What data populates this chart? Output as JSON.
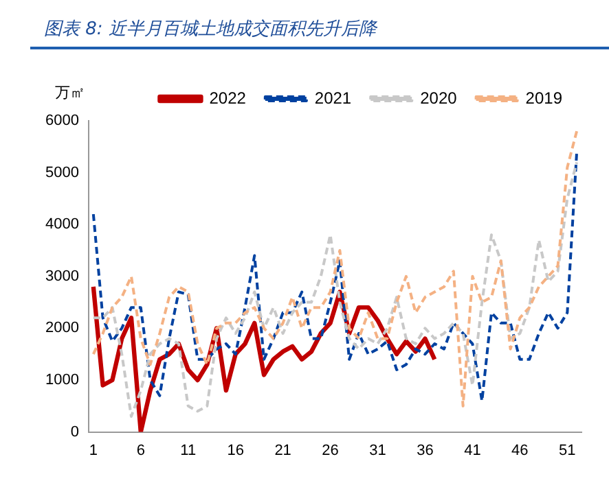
{
  "chart_data": {
    "type": "line",
    "title": "图表 8:  近半月百城土地成交面积先升后降",
    "ylabel": "万㎡",
    "x": [
      1,
      2,
      3,
      4,
      5,
      6,
      7,
      8,
      9,
      10,
      11,
      12,
      13,
      14,
      15,
      16,
      17,
      18,
      19,
      20,
      21,
      22,
      23,
      24,
      25,
      26,
      27,
      28,
      29,
      30,
      31,
      32,
      33,
      34,
      35,
      36,
      37,
      38,
      39,
      40,
      41,
      42,
      43,
      44,
      45,
      46,
      47,
      48,
      49,
      50,
      51,
      52
    ],
    "xlim": [
      0.5,
      52.5
    ],
    "xticks": [
      1,
      6,
      11,
      16,
      21,
      26,
      31,
      36,
      41,
      46,
      51
    ],
    "ylim": [
      0,
      6000
    ],
    "yticks": [
      0,
      1000,
      2000,
      3000,
      4000,
      5000,
      6000
    ],
    "grid": false,
    "legend": "top",
    "marker": "none",
    "series": [
      {
        "name": "2022",
        "color": "#c00000",
        "line_style": "solid",
        "x": [
          1,
          2,
          3,
          4,
          5,
          6,
          7,
          8,
          9,
          10,
          11,
          12,
          13,
          14,
          15,
          16,
          17,
          18,
          19,
          20,
          21,
          22,
          23,
          24,
          25,
          26,
          27,
          28,
          29,
          30,
          31,
          32,
          33,
          34,
          35,
          36,
          37
        ],
        "values": [
          2800,
          900,
          1000,
          1800,
          2200,
          0,
          800,
          1400,
          1500,
          1700,
          1200,
          1000,
          1300,
          2000,
          800,
          1500,
          1700,
          2100,
          1100,
          1400,
          1550,
          1650,
          1400,
          1550,
          1900,
          2100,
          2700,
          1900,
          2400,
          2400,
          2150,
          1800,
          1500,
          1750,
          1550,
          1800,
          1400
        ]
      },
      {
        "name": "2021",
        "color": "#0041a0",
        "line_style": "dashed",
        "values": [
          4200,
          2200,
          1750,
          2000,
          2400,
          2400,
          1000,
          700,
          1800,
          2700,
          2650,
          1400,
          1400,
          1600,
          1700,
          1500,
          2400,
          3400,
          1400,
          1800,
          2300,
          2300,
          2700,
          1800,
          1800,
          2500,
          3300,
          1400,
          1900,
          1500,
          1600,
          1750,
          1200,
          1300,
          1600,
          1500,
          1700,
          1600,
          2100,
          1900,
          1700,
          600,
          2300,
          2100,
          2100,
          1400,
          1400,
          1900,
          2300,
          2000,
          2300,
          5400
        ]
      },
      {
        "name": "2020",
        "color": "#c8c8c8",
        "line_style": "dashed",
        "values": [
          2200,
          2200,
          2400,
          1500,
          300,
          800,
          1500,
          1700,
          1800,
          1700,
          500,
          400,
          500,
          1800,
          2200,
          1900,
          2200,
          2700,
          2000,
          2400,
          1900,
          2300,
          2500,
          2500,
          3000,
          3800,
          2500,
          1800,
          1600,
          1800,
          1700,
          2000,
          2600,
          1800,
          1700,
          2000,
          1800,
          1900,
          2100,
          1900,
          900,
          2500,
          3800,
          3300,
          1800,
          1900,
          2400,
          3700,
          2900,
          3100,
          4500,
          5200
        ]
      },
      {
        "name": "2019",
        "color": "#f4b183",
        "line_style": "dashed",
        "values": [
          1500,
          1900,
          2400,
          2600,
          3000,
          1800,
          1300,
          1900,
          2600,
          2800,
          2700,
          1700,
          1300,
          2000,
          2100,
          2100,
          2300,
          2400,
          2000,
          1800,
          2100,
          2600,
          2000,
          2400,
          2400,
          2700,
          3500,
          2000,
          1800,
          2300,
          1800,
          1800,
          2500,
          3000,
          2300,
          2600,
          2700,
          2800,
          3100,
          500,
          3000,
          2500,
          2600,
          3300,
          1600,
          2200,
          2400,
          2800,
          3000,
          3200,
          5100,
          5800
        ]
      }
    ]
  }
}
